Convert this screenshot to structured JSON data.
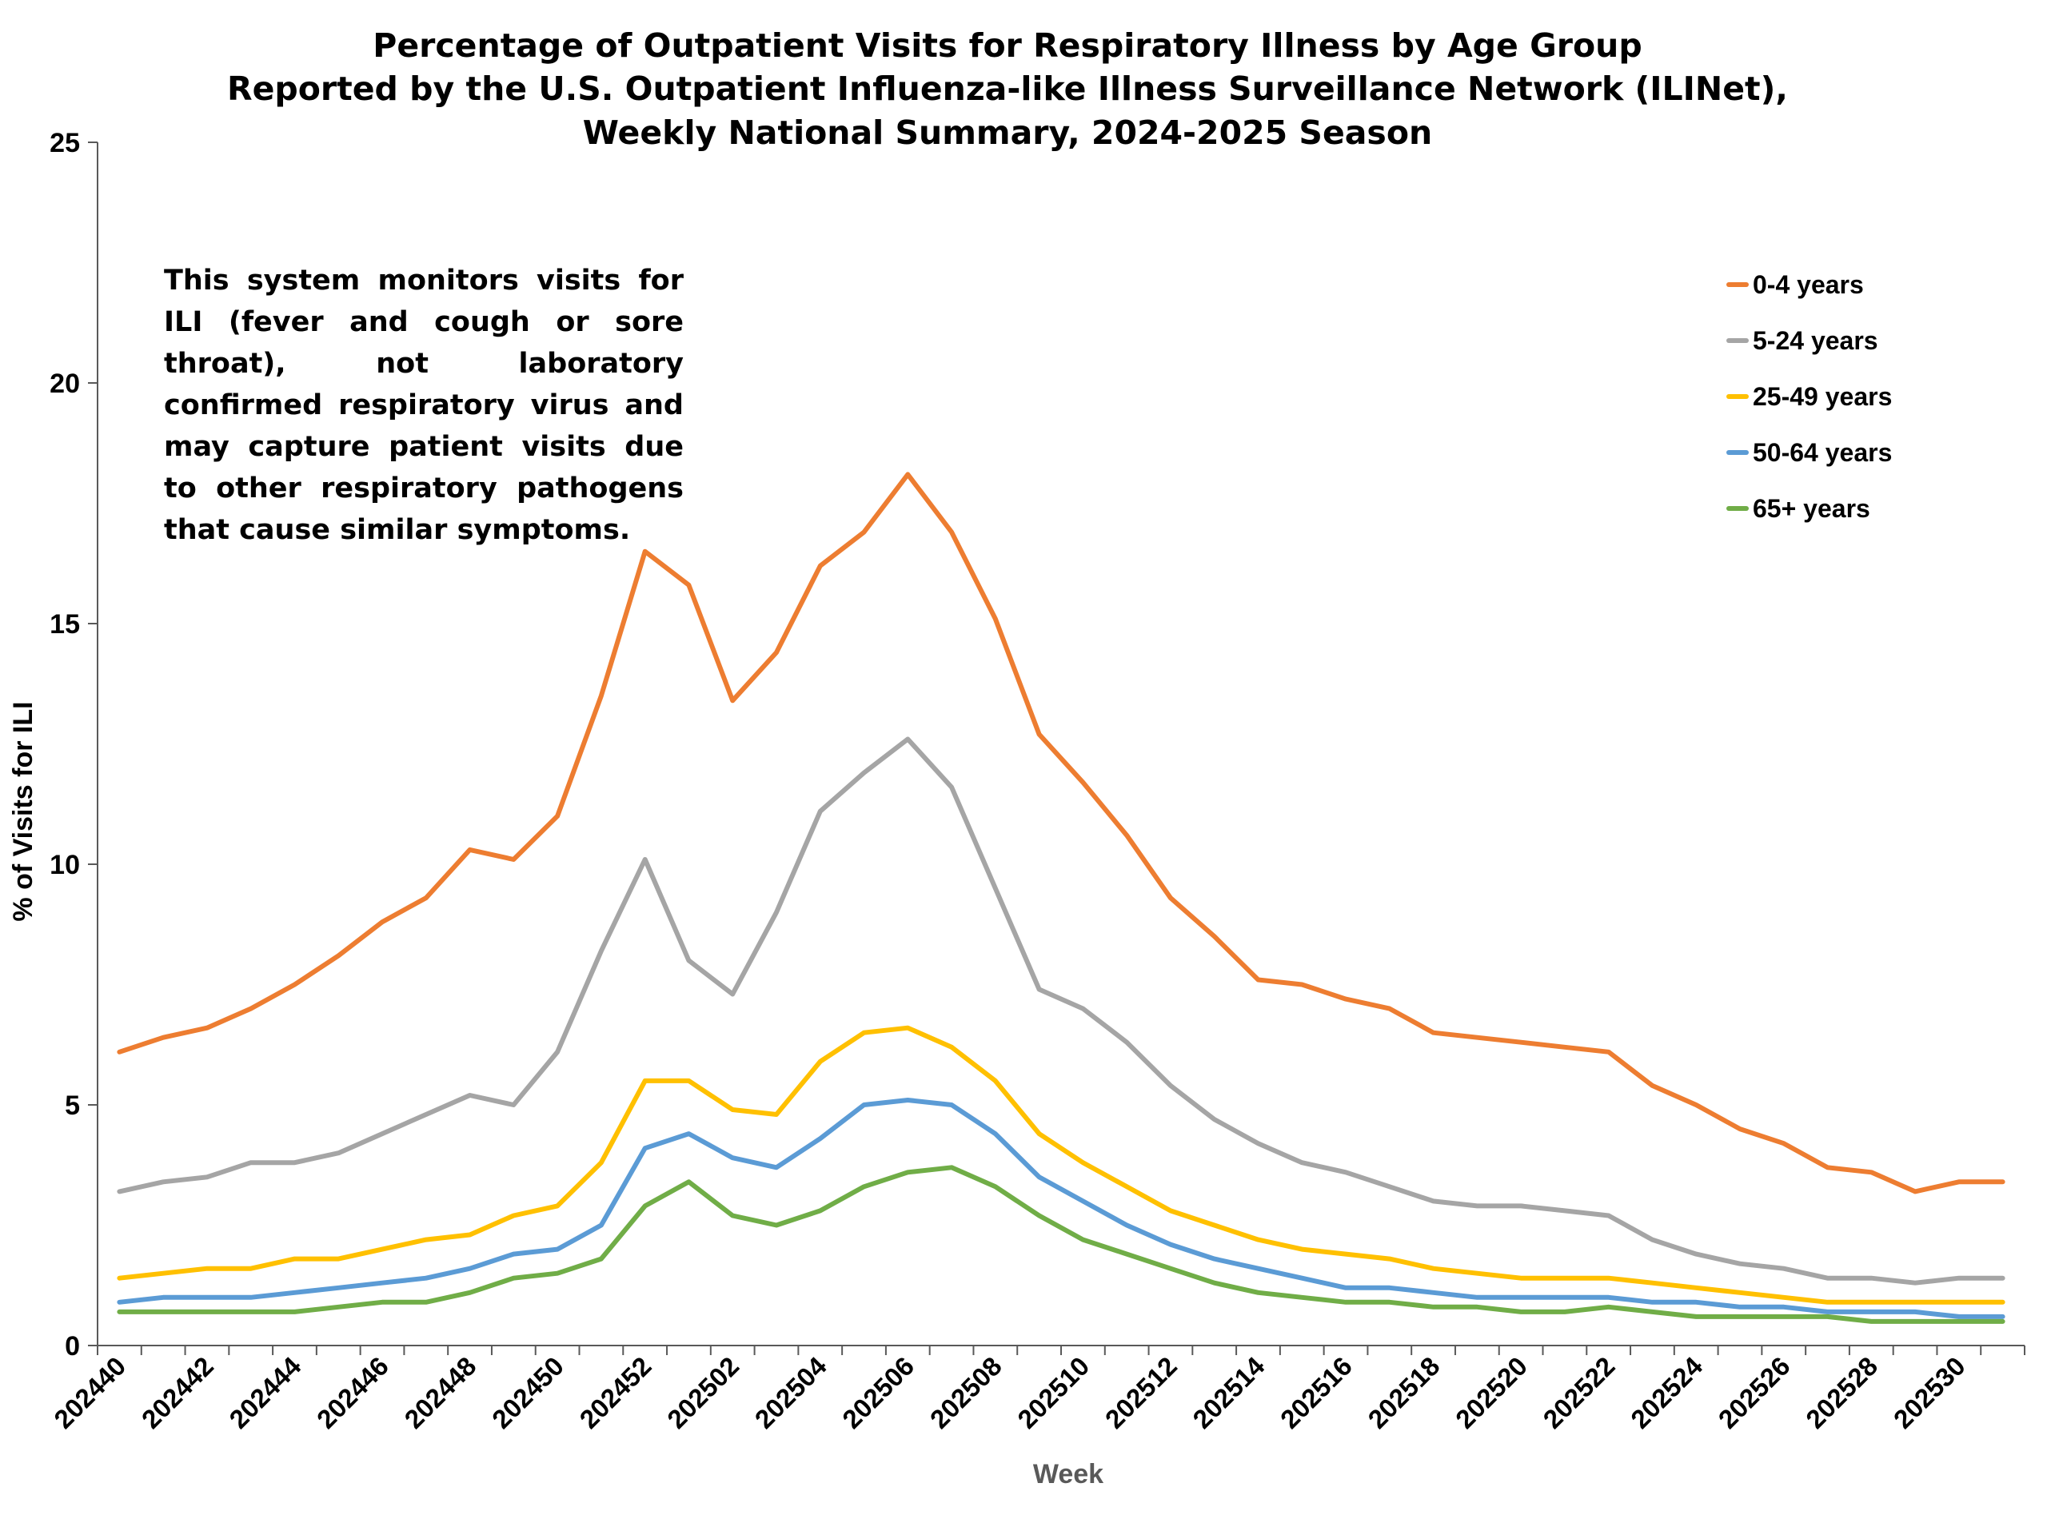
{
  "chart_data": {
    "type": "line",
    "title_lines": [
      "Percentage of Outpatient Visits for Respiratory Illness by Age Group",
      "Reported by the U.S. Outpatient Influenza-like Illness Surveillance Network (ILINet),",
      "Weekly National Summary, 2024-2025 Season"
    ],
    "xlabel": "Week",
    "ylabel": "% of Visits for ILI",
    "ylim": [
      0,
      25
    ],
    "yticks": [
      "0",
      "5",
      "10",
      "15",
      "20",
      "25"
    ],
    "x": [
      "202440",
      "202441",
      "202442",
      "202443",
      "202444",
      "202445",
      "202446",
      "202447",
      "202448",
      "202449",
      "202450",
      "202451",
      "202452",
      "202501",
      "202502",
      "202503",
      "202504",
      "202505",
      "202506",
      "202507",
      "202508",
      "202509",
      "202510",
      "202511",
      "202512",
      "202513",
      "202514",
      "202515",
      "202516",
      "202517",
      "202518",
      "202519",
      "202520",
      "202521",
      "202522",
      "202523",
      "202524",
      "202525",
      "202526",
      "202527",
      "202528",
      "202529",
      "202530",
      "202531"
    ],
    "xtick_labels": [
      "202440",
      "202442",
      "202444",
      "202446",
      "202448",
      "202450",
      "202452",
      "202502",
      "202504",
      "202506",
      "202508",
      "202510",
      "202512",
      "202514",
      "202516",
      "202518",
      "202520",
      "202522",
      "202524",
      "202526",
      "202528",
      "202530"
    ],
    "legend_position": "top-right",
    "annotation": "This system monitors visits for ILI (fever and cough or sore throat), not laboratory confirmed respiratory virus and may capture patient visits due to other respiratory pathogens that cause similar symptoms.",
    "series": [
      {
        "name": "0-4 years",
        "color": "#ED7D31",
        "values": [
          6.1,
          6.4,
          6.6,
          7.0,
          7.5,
          8.1,
          8.8,
          9.3,
          10.3,
          10.1,
          11.0,
          13.5,
          16.5,
          15.8,
          13.4,
          14.4,
          16.2,
          16.9,
          18.1,
          16.9,
          15.1,
          12.7,
          11.7,
          10.6,
          9.3,
          8.5,
          7.6,
          7.5,
          7.2,
          7.0,
          6.5,
          6.4,
          6.3,
          6.2,
          6.1,
          5.4,
          5.0,
          4.5,
          4.2,
          3.7,
          3.6,
          3.2,
          3.4,
          3.4
        ]
      },
      {
        "name": "5-24 years",
        "color": "#A5A5A5",
        "values": [
          3.2,
          3.4,
          3.5,
          3.8,
          3.8,
          4.0,
          4.4,
          4.8,
          5.2,
          5.0,
          6.1,
          8.2,
          10.1,
          8.0,
          7.3,
          9.0,
          11.1,
          11.9,
          12.6,
          11.6,
          9.5,
          7.4,
          7.0,
          6.3,
          5.4,
          4.7,
          4.2,
          3.8,
          3.6,
          3.3,
          3.0,
          2.9,
          2.9,
          2.8,
          2.7,
          2.2,
          1.9,
          1.7,
          1.6,
          1.4,
          1.4,
          1.3,
          1.4,
          1.4
        ]
      },
      {
        "name": "25-49 years",
        "color": "#FFC000",
        "values": [
          1.4,
          1.5,
          1.6,
          1.6,
          1.8,
          1.8,
          2.0,
          2.2,
          2.3,
          2.7,
          2.9,
          3.8,
          5.5,
          5.5,
          4.9,
          4.8,
          5.9,
          6.5,
          6.6,
          6.2,
          5.5,
          4.4,
          3.8,
          3.3,
          2.8,
          2.5,
          2.2,
          2.0,
          1.9,
          1.8,
          1.6,
          1.5,
          1.4,
          1.4,
          1.4,
          1.3,
          1.2,
          1.1,
          1.0,
          0.9,
          0.9,
          0.9,
          0.9,
          0.9
        ]
      },
      {
        "name": "50-64 years",
        "color": "#5B9BD5",
        "values": [
          0.9,
          1.0,
          1.0,
          1.0,
          1.1,
          1.2,
          1.3,
          1.4,
          1.6,
          1.9,
          2.0,
          2.5,
          4.1,
          4.4,
          3.9,
          3.7,
          4.3,
          5.0,
          5.1,
          5.0,
          4.4,
          3.5,
          3.0,
          2.5,
          2.1,
          1.8,
          1.6,
          1.4,
          1.2,
          1.2,
          1.1,
          1.0,
          1.0,
          1.0,
          1.0,
          0.9,
          0.9,
          0.8,
          0.8,
          0.7,
          0.7,
          0.7,
          0.6,
          0.6
        ]
      },
      {
        "name": "65+ years",
        "color": "#70AD47",
        "values": [
          0.7,
          0.7,
          0.7,
          0.7,
          0.7,
          0.8,
          0.9,
          0.9,
          1.1,
          1.4,
          1.5,
          1.8,
          2.9,
          3.4,
          2.7,
          2.5,
          2.8,
          3.3,
          3.6,
          3.7,
          3.3,
          2.7,
          2.2,
          1.9,
          1.6,
          1.3,
          1.1,
          1.0,
          0.9,
          0.9,
          0.8,
          0.8,
          0.7,
          0.7,
          0.8,
          0.7,
          0.6,
          0.6,
          0.6,
          0.6,
          0.5,
          0.5,
          0.5,
          0.5
        ]
      }
    ]
  }
}
